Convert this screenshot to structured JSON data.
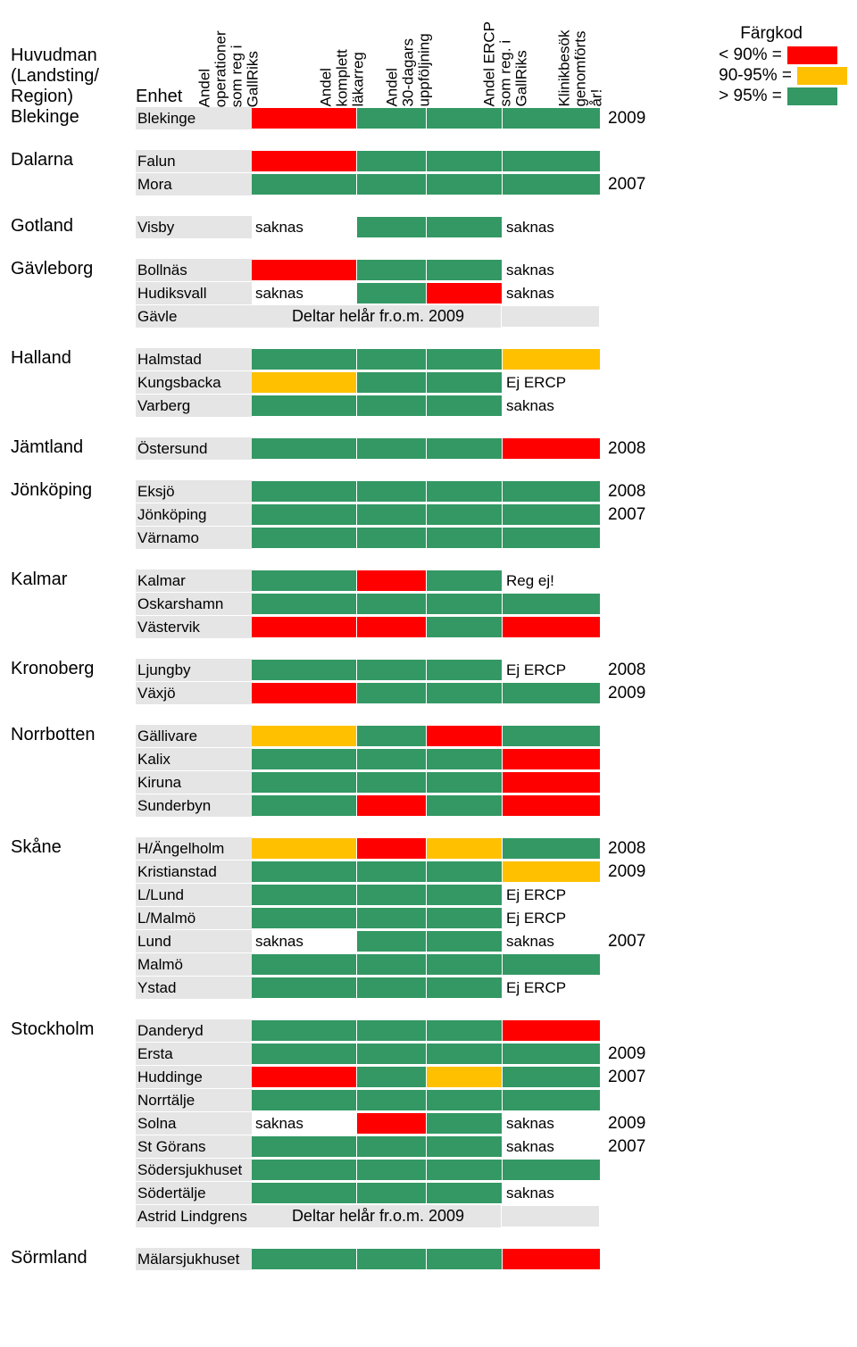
{
  "colors": {
    "red": "#ff0000",
    "yellow": "#ffc000",
    "green": "#339864",
    "gray": "#e5e5e5",
    "white": "#ffffff"
  },
  "legend": {
    "title": "Färgkod",
    "items": [
      {
        "label": "< 90% =",
        "color": "#ff0000"
      },
      {
        "label": "90-95% =",
        "color": "#ffc000"
      },
      {
        "label": "> 95% =",
        "color": "#339864"
      }
    ]
  },
  "headers": {
    "huvudman_line1": "Huvudman",
    "huvudman_line2": "(Landsting/",
    "huvudman_line3": "Region)",
    "enhet": "Enhet",
    "col3": "Andel\noperationer\nsom reg i\nGallRiks",
    "col4": "Andel\nkomplett\nläkarreg",
    "col5": "Andel\n30-dagars\nuppföljning",
    "col6": "Andel ERCP\nsom reg. i\nGallRiks",
    "col7": "Klinikbesök\ngenomförts\når!"
  },
  "groups": [
    {
      "huvudman": "Blekinge",
      "rows": [
        {
          "enhet": "Blekinge",
          "c3": {
            "type": "color",
            "v": "#ff0000"
          },
          "c4": {
            "type": "color",
            "v": "#339864"
          },
          "c5": {
            "type": "color",
            "v": "#339864"
          },
          "c6": {
            "type": "color",
            "v": "#339864"
          },
          "year": "2009"
        }
      ]
    },
    {
      "huvudman": "Dalarna",
      "rows": [
        {
          "enhet": "Falun",
          "c3": {
            "type": "color",
            "v": "#ff0000"
          },
          "c4": {
            "type": "color",
            "v": "#339864"
          },
          "c5": {
            "type": "color",
            "v": "#339864"
          },
          "c6": {
            "type": "color",
            "v": "#339864"
          },
          "year": ""
        },
        {
          "enhet": "Mora",
          "c3": {
            "type": "color",
            "v": "#339864"
          },
          "c4": {
            "type": "color",
            "v": "#339864"
          },
          "c5": {
            "type": "color",
            "v": "#339864"
          },
          "c6": {
            "type": "color",
            "v": "#339864"
          },
          "year": "2007"
        }
      ]
    },
    {
      "huvudman": "Gotland",
      "rows": [
        {
          "enhet": "Visby",
          "c3": {
            "type": "text",
            "v": "saknas"
          },
          "c4": {
            "type": "color",
            "v": "#339864"
          },
          "c5": {
            "type": "color",
            "v": "#339864"
          },
          "c6": {
            "type": "text",
            "v": "saknas"
          },
          "year": ""
        }
      ]
    },
    {
      "huvudman": "Gävleborg",
      "rows": [
        {
          "enhet": "Bollnäs",
          "c3": {
            "type": "color",
            "v": "#ff0000"
          },
          "c4": {
            "type": "color",
            "v": "#339864"
          },
          "c5": {
            "type": "color",
            "v": "#339864"
          },
          "c6": {
            "type": "text",
            "v": "saknas"
          },
          "year": ""
        },
        {
          "enhet": "Hudiksvall",
          "c3": {
            "type": "text",
            "v": "saknas"
          },
          "c4": {
            "type": "color",
            "v": "#339864"
          },
          "c5": {
            "type": "color",
            "v": "#ff0000"
          },
          "c6": {
            "type": "text",
            "v": "saknas"
          },
          "year": ""
        },
        {
          "enhet": "Gävle",
          "span": {
            "v": "Deltar helår fr.o.m. 2009"
          },
          "c6": {
            "type": "gray",
            "v": ""
          },
          "year": ""
        }
      ]
    },
    {
      "huvudman": "Halland",
      "rows": [
        {
          "enhet": "Halmstad",
          "c3": {
            "type": "color",
            "v": "#339864"
          },
          "c4": {
            "type": "color",
            "v": "#339864"
          },
          "c5": {
            "type": "color",
            "v": "#339864"
          },
          "c6": {
            "type": "color",
            "v": "#ffc000"
          },
          "year": ""
        },
        {
          "enhet": "Kungsbacka",
          "c3": {
            "type": "color",
            "v": "#ffc000"
          },
          "c4": {
            "type": "color",
            "v": "#339864"
          },
          "c5": {
            "type": "color",
            "v": "#339864"
          },
          "c6": {
            "type": "text",
            "v": "Ej ERCP"
          },
          "year": ""
        },
        {
          "enhet": "Varberg",
          "c3": {
            "type": "color",
            "v": "#339864"
          },
          "c4": {
            "type": "color",
            "v": "#339864"
          },
          "c5": {
            "type": "color",
            "v": "#339864"
          },
          "c6": {
            "type": "text",
            "v": "saknas"
          },
          "year": ""
        }
      ]
    },
    {
      "huvudman": "Jämtland",
      "rows": [
        {
          "enhet": "Östersund",
          "c3": {
            "type": "color",
            "v": "#339864"
          },
          "c4": {
            "type": "color",
            "v": "#339864"
          },
          "c5": {
            "type": "color",
            "v": "#339864"
          },
          "c6": {
            "type": "color",
            "v": "#ff0000"
          },
          "year": "2008"
        }
      ]
    },
    {
      "huvudman": "Jönköping",
      "rows": [
        {
          "enhet": "Eksjö",
          "c3": {
            "type": "color",
            "v": "#339864"
          },
          "c4": {
            "type": "color",
            "v": "#339864"
          },
          "c5": {
            "type": "color",
            "v": "#339864"
          },
          "c6": {
            "type": "color",
            "v": "#339864"
          },
          "year": "2008"
        },
        {
          "enhet": "Jönköping",
          "c3": {
            "type": "color",
            "v": "#339864"
          },
          "c4": {
            "type": "color",
            "v": "#339864"
          },
          "c5": {
            "type": "color",
            "v": "#339864"
          },
          "c6": {
            "type": "color",
            "v": "#339864"
          },
          "year": "2007"
        },
        {
          "enhet": "Värnamo",
          "c3": {
            "type": "color",
            "v": "#339864"
          },
          "c4": {
            "type": "color",
            "v": "#339864"
          },
          "c5": {
            "type": "color",
            "v": "#339864"
          },
          "c6": {
            "type": "color",
            "v": "#339864"
          },
          "year": ""
        }
      ]
    },
    {
      "huvudman": "Kalmar",
      "rows": [
        {
          "enhet": "Kalmar",
          "c3": {
            "type": "color",
            "v": "#339864"
          },
          "c4": {
            "type": "color",
            "v": "#ff0000"
          },
          "c5": {
            "type": "color",
            "v": "#339864"
          },
          "c6": {
            "type": "text",
            "v": "Reg ej!"
          },
          "year": ""
        },
        {
          "enhet": "Oskarshamn",
          "c3": {
            "type": "color",
            "v": "#339864"
          },
          "c4": {
            "type": "color",
            "v": "#339864"
          },
          "c5": {
            "type": "color",
            "v": "#339864"
          },
          "c6": {
            "type": "color",
            "v": "#339864"
          },
          "year": ""
        },
        {
          "enhet": "Västervik",
          "c3": {
            "type": "color",
            "v": "#ff0000"
          },
          "c4": {
            "type": "color",
            "v": "#ff0000"
          },
          "c5": {
            "type": "color",
            "v": "#339864"
          },
          "c6": {
            "type": "color",
            "v": "#ff0000"
          },
          "year": ""
        }
      ]
    },
    {
      "huvudman": "Kronoberg",
      "rows": [
        {
          "enhet": "Ljungby",
          "c3": {
            "type": "color",
            "v": "#339864"
          },
          "c4": {
            "type": "color",
            "v": "#339864"
          },
          "c5": {
            "type": "color",
            "v": "#339864"
          },
          "c6": {
            "type": "text",
            "v": "Ej ERCP"
          },
          "year": "2008"
        },
        {
          "enhet": "Växjö",
          "c3": {
            "type": "color",
            "v": "#ff0000"
          },
          "c4": {
            "type": "color",
            "v": "#339864"
          },
          "c5": {
            "type": "color",
            "v": "#339864"
          },
          "c6": {
            "type": "color",
            "v": "#339864"
          },
          "year": "2009"
        }
      ]
    },
    {
      "huvudman": "Norrbotten",
      "rows": [
        {
          "enhet": "Gällivare",
          "c3": {
            "type": "color",
            "v": "#ffc000"
          },
          "c4": {
            "type": "color",
            "v": "#339864"
          },
          "c5": {
            "type": "color",
            "v": "#ff0000"
          },
          "c6": {
            "type": "color",
            "v": "#339864"
          },
          "year": ""
        },
        {
          "enhet": "Kalix",
          "c3": {
            "type": "color",
            "v": "#339864"
          },
          "c4": {
            "type": "color",
            "v": "#339864"
          },
          "c5": {
            "type": "color",
            "v": "#339864"
          },
          "c6": {
            "type": "color",
            "v": "#ff0000"
          },
          "year": ""
        },
        {
          "enhet": "Kiruna",
          "c3": {
            "type": "color",
            "v": "#339864"
          },
          "c4": {
            "type": "color",
            "v": "#339864"
          },
          "c5": {
            "type": "color",
            "v": "#339864"
          },
          "c6": {
            "type": "color",
            "v": "#ff0000"
          },
          "year": ""
        },
        {
          "enhet": "Sunderbyn",
          "c3": {
            "type": "color",
            "v": "#339864"
          },
          "c4": {
            "type": "color",
            "v": "#ff0000"
          },
          "c5": {
            "type": "color",
            "v": "#339864"
          },
          "c6": {
            "type": "color",
            "v": "#ff0000"
          },
          "year": ""
        }
      ]
    },
    {
      "huvudman": "Skåne",
      "rows": [
        {
          "enhet": "H/Ängelholm",
          "c3": {
            "type": "color",
            "v": "#ffc000"
          },
          "c4": {
            "type": "color",
            "v": "#ff0000"
          },
          "c5": {
            "type": "color",
            "v": "#ffc000"
          },
          "c6": {
            "type": "color",
            "v": "#339864"
          },
          "year": "2008"
        },
        {
          "enhet": "Kristianstad",
          "c3": {
            "type": "color",
            "v": "#339864"
          },
          "c4": {
            "type": "color",
            "v": "#339864"
          },
          "c5": {
            "type": "color",
            "v": "#339864"
          },
          "c6": {
            "type": "color",
            "v": "#ffc000"
          },
          "year": "2009"
        },
        {
          "enhet": "L/Lund",
          "c3": {
            "type": "color",
            "v": "#339864"
          },
          "c4": {
            "type": "color",
            "v": "#339864"
          },
          "c5": {
            "type": "color",
            "v": "#339864"
          },
          "c6": {
            "type": "text",
            "v": "Ej ERCP"
          },
          "year": ""
        },
        {
          "enhet": "L/Malmö",
          "c3": {
            "type": "color",
            "v": "#339864"
          },
          "c4": {
            "type": "color",
            "v": "#339864"
          },
          "c5": {
            "type": "color",
            "v": "#339864"
          },
          "c6": {
            "type": "text",
            "v": "Ej ERCP"
          },
          "year": ""
        },
        {
          "enhet": "Lund",
          "c3": {
            "type": "text",
            "v": "saknas"
          },
          "c4": {
            "type": "color",
            "v": "#339864"
          },
          "c5": {
            "type": "color",
            "v": "#339864"
          },
          "c6": {
            "type": "text",
            "v": "saknas"
          },
          "year": "2007"
        },
        {
          "enhet": "Malmö",
          "c3": {
            "type": "color",
            "v": "#339864"
          },
          "c4": {
            "type": "color",
            "v": "#339864"
          },
          "c5": {
            "type": "color",
            "v": "#339864"
          },
          "c6": {
            "type": "color",
            "v": "#339864"
          },
          "year": ""
        },
        {
          "enhet": "Ystad",
          "c3": {
            "type": "color",
            "v": "#339864"
          },
          "c4": {
            "type": "color",
            "v": "#339864"
          },
          "c5": {
            "type": "color",
            "v": "#339864"
          },
          "c6": {
            "type": "text",
            "v": "Ej ERCP"
          },
          "year": ""
        }
      ]
    },
    {
      "huvudman": "Stockholm",
      "rows": [
        {
          "enhet": "Danderyd",
          "c3": {
            "type": "color",
            "v": "#339864"
          },
          "c4": {
            "type": "color",
            "v": "#339864"
          },
          "c5": {
            "type": "color",
            "v": "#339864"
          },
          "c6": {
            "type": "color",
            "v": "#ff0000"
          },
          "year": ""
        },
        {
          "enhet": "Ersta",
          "c3": {
            "type": "color",
            "v": "#339864"
          },
          "c4": {
            "type": "color",
            "v": "#339864"
          },
          "c5": {
            "type": "color",
            "v": "#339864"
          },
          "c6": {
            "type": "color",
            "v": "#339864"
          },
          "year": "2009"
        },
        {
          "enhet": "Huddinge",
          "c3": {
            "type": "color",
            "v": "#ff0000"
          },
          "c4": {
            "type": "color",
            "v": "#339864"
          },
          "c5": {
            "type": "color",
            "v": "#ffc000"
          },
          "c6": {
            "type": "color",
            "v": "#339864"
          },
          "year": "2007"
        },
        {
          "enhet": "Norrtälje",
          "c3": {
            "type": "color",
            "v": "#339864"
          },
          "c4": {
            "type": "color",
            "v": "#339864"
          },
          "c5": {
            "type": "color",
            "v": "#339864"
          },
          "c6": {
            "type": "color",
            "v": "#339864"
          },
          "year": ""
        },
        {
          "enhet": "Solna",
          "c3": {
            "type": "text",
            "v": "saknas"
          },
          "c4": {
            "type": "color",
            "v": "#ff0000"
          },
          "c5": {
            "type": "color",
            "v": "#339864"
          },
          "c6": {
            "type": "text",
            "v": "saknas"
          },
          "year": "2009"
        },
        {
          "enhet": "St Görans",
          "c3": {
            "type": "color",
            "v": "#339864"
          },
          "c4": {
            "type": "color",
            "v": "#339864"
          },
          "c5": {
            "type": "color",
            "v": "#339864"
          },
          "c6": {
            "type": "text",
            "v": "saknas"
          },
          "year": "2007"
        },
        {
          "enhet": "Södersjukhuset",
          "c3": {
            "type": "color",
            "v": "#339864"
          },
          "c4": {
            "type": "color",
            "v": "#339864"
          },
          "c5": {
            "type": "color",
            "v": "#339864"
          },
          "c6": {
            "type": "color",
            "v": "#339864"
          },
          "year": ""
        },
        {
          "enhet": "Södertälje",
          "c3": {
            "type": "color",
            "v": "#339864"
          },
          "c4": {
            "type": "color",
            "v": "#339864"
          },
          "c5": {
            "type": "color",
            "v": "#339864"
          },
          "c6": {
            "type": "text",
            "v": "saknas"
          },
          "year": ""
        },
        {
          "enhet": "Astrid Lindgrens",
          "span": {
            "v": "Deltar helår fr.o.m. 2009"
          },
          "c6": {
            "type": "gray",
            "v": ""
          },
          "year": ""
        }
      ]
    },
    {
      "huvudman": "Sörmland",
      "rows": [
        {
          "enhet": "Mälarsjukhuset",
          "c3": {
            "type": "color",
            "v": "#339864"
          },
          "c4": {
            "type": "color",
            "v": "#339864"
          },
          "c5": {
            "type": "color",
            "v": "#339864"
          },
          "c6": {
            "type": "color",
            "v": "#ff0000"
          },
          "year": ""
        }
      ]
    }
  ]
}
